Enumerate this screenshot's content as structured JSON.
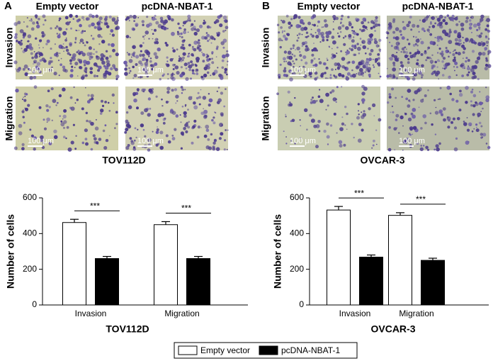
{
  "panels": [
    {
      "label": "A",
      "columns": [
        "Empty vector",
        "pcDNA-NBAT-1"
      ],
      "rows": [
        "Invasion",
        "Migration"
      ],
      "scale_bar": "100 μm",
      "cell_line": "TOV112D"
    },
    {
      "label": "B",
      "columns": [
        "Empty vector",
        "pcDNA-NBAT-1"
      ],
      "rows": [
        "Invasion",
        "Migration"
      ],
      "scale_bar": "100 μm",
      "cell_line": "OVCAR-3"
    }
  ],
  "chart_data": [
    {
      "type": "bar",
      "xlabel": "TOV112D",
      "ylabel": "Number of cells",
      "categories": [
        "Invasion",
        "Migration"
      ],
      "series": [
        {
          "name": "Empty vector",
          "color": "#ffffff",
          "values": [
            462,
            450
          ],
          "errors": [
            18,
            17
          ]
        },
        {
          "name": "pcDNA-NBAT-1",
          "color": "#000000",
          "values": [
            260,
            260
          ],
          "errors": [
            12,
            12
          ]
        }
      ],
      "annotations": [
        "***",
        "***"
      ],
      "ylim": [
        0,
        600
      ],
      "yticks": [
        0,
        200,
        400,
        600
      ]
    },
    {
      "type": "bar",
      "xlabel": "OVCAR-3",
      "ylabel": "Number of cells",
      "categories": [
        "Invasion",
        "Migration"
      ],
      "series": [
        {
          "name": "Empty vector",
          "color": "#ffffff",
          "values": [
            532,
            502
          ],
          "errors": [
            20,
            15
          ]
        },
        {
          "name": "pcDNA-NBAT-1",
          "color": "#000000",
          "values": [
            268,
            250
          ],
          "errors": [
            12,
            12
          ]
        }
      ],
      "annotations": [
        "***",
        "***"
      ],
      "ylim": [
        0,
        600
      ],
      "yticks": [
        0,
        200,
        400,
        600
      ]
    }
  ]
}
